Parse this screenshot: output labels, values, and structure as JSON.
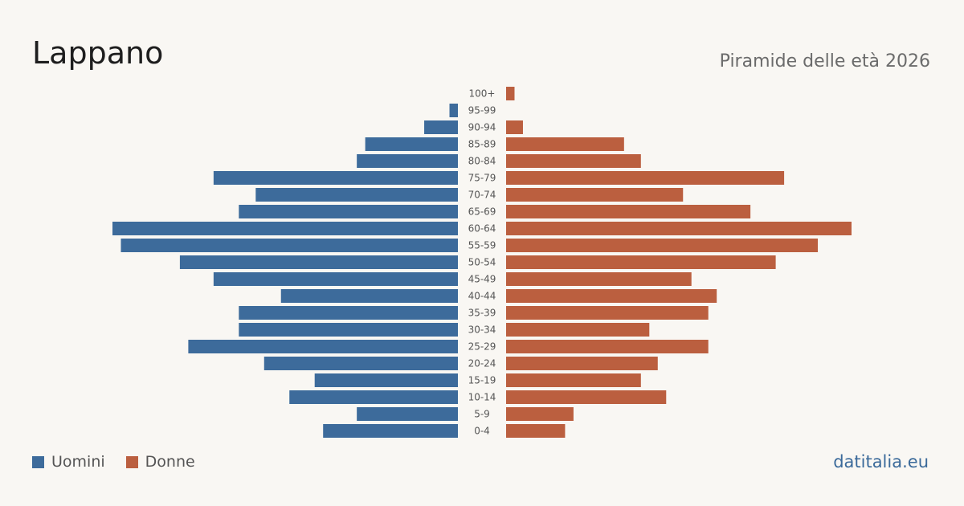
{
  "header": {
    "title": "Lappano",
    "subtitle": "Piramide delle età 2026"
  },
  "legend": {
    "men_label": "Uomini",
    "women_label": "Donne"
  },
  "footer": {
    "source": "datitalia.eu"
  },
  "colors": {
    "men": "#3d6b9b",
    "women": "#bb5f3f",
    "background": "#f9f7f3",
    "age_label": "#555555"
  },
  "chart_data": {
    "type": "bar",
    "orientation": "horizontal-population-pyramid",
    "categories": [
      "100+",
      "95-99",
      "90-94",
      "85-89",
      "80-84",
      "75-79",
      "70-74",
      "65-69",
      "60-64",
      "55-59",
      "50-54",
      "45-49",
      "40-44",
      "35-39",
      "30-34",
      "25-29",
      "20-24",
      "15-19",
      "10-14",
      "5-9",
      "0-4"
    ],
    "series": [
      {
        "name": "Uomini",
        "values": [
          0,
          1,
          4,
          11,
          12,
          29,
          24,
          26,
          41,
          40,
          33,
          29,
          21,
          26,
          26,
          32,
          23,
          17,
          20,
          12,
          16
        ]
      },
      {
        "name": "Donne",
        "values": [
          1,
          0,
          2,
          14,
          16,
          33,
          21,
          29,
          41,
          37,
          32,
          22,
          25,
          24,
          17,
          24,
          18,
          16,
          19,
          8,
          7
        ]
      }
    ],
    "legend_position": "bottom-left",
    "grid": false
  }
}
